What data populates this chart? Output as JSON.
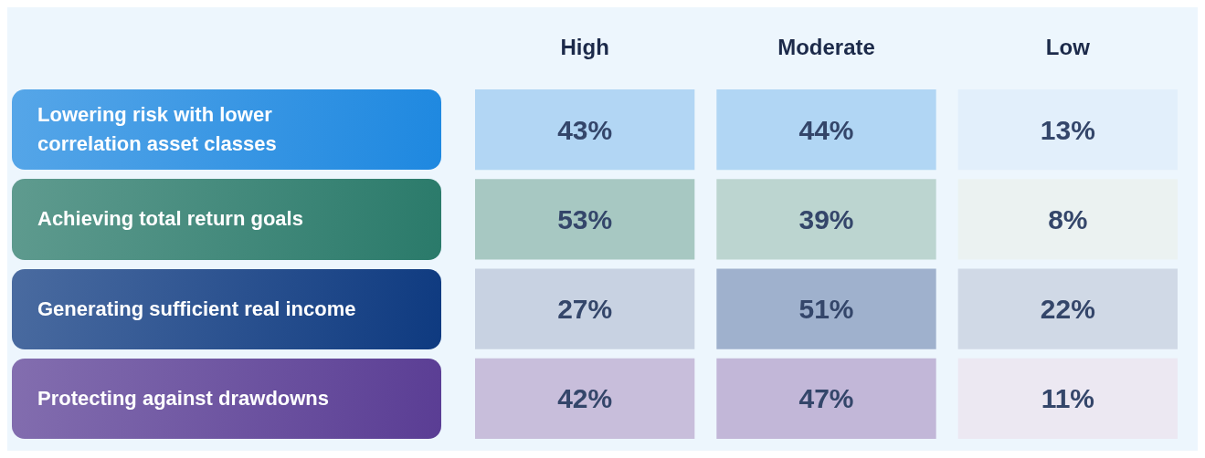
{
  "chart_data": {
    "type": "heatmap",
    "categories": [
      "High",
      "Moderate",
      "Low"
    ],
    "y_categories": [
      "Lowering risk with lower\ncorrelation asset classes",
      "Achieving total return goals",
      "Generating sufficient real income",
      "Protecting against drawdowns"
    ],
    "colors": [
      "#1e88e0",
      "#2a7a6a",
      "#0e3a80",
      "#5a3d94"
    ],
    "cells": [
      [
        43,
        44,
        13
      ],
      [
        53,
        39,
        8
      ],
      [
        27,
        51,
        22
      ],
      [
        42,
        47,
        11
      ]
    ],
    "cell_labels": [
      [
        "43%",
        "44%",
        "13%"
      ],
      [
        "53%",
        "39%",
        "8%"
      ],
      [
        "27%",
        "51%",
        "22%"
      ],
      [
        "42%",
        "47%",
        "11%"
      ]
    ]
  }
}
